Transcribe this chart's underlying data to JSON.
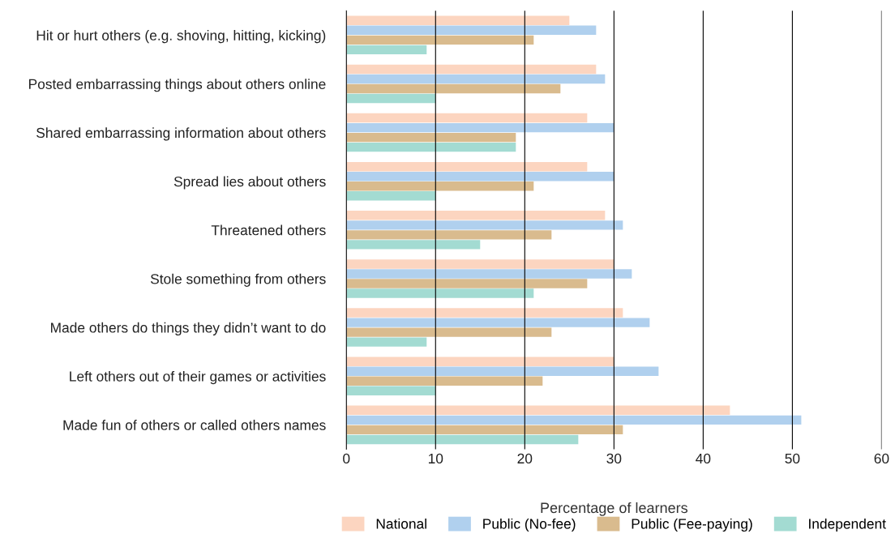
{
  "chart_data": {
    "type": "bar",
    "orientation": "horizontal",
    "xlabel": "Percentage of learners",
    "categories": [
      "Hit or hurt others (e.g. shoving, hitting, kicking)",
      "Posted embarrassing things about others online",
      "Shared embarrassing information about others",
      "Spread lies about others",
      "Threatened others",
      "Stole something from others",
      "Made others do things they didn’t want to do",
      "Left others out of their games or activities",
      "Made fun of others or called others names"
    ],
    "series": [
      {
        "name": "National",
        "color": "#fcd5c0",
        "values": [
          25,
          28,
          27,
          27,
          29,
          30,
          31,
          30,
          43
        ]
      },
      {
        "name": "Public (No-fee)",
        "color": "#b0d0ee",
        "values": [
          28,
          29,
          30,
          30,
          31,
          32,
          34,
          35,
          51
        ]
      },
      {
        "name": "Public (Fee-paying)",
        "color": "#d9bb8e",
        "values": [
          21,
          24,
          19,
          21,
          23,
          27,
          23,
          22,
          31
        ]
      },
      {
        "name": "Independent",
        "color": "#a3dbd2",
        "values": [
          9,
          10,
          19,
          10,
          15,
          21,
          9,
          10,
          26
        ]
      }
    ],
    "xlim": [
      0,
      60
    ],
    "xticks": [
      0,
      10,
      20,
      30,
      40,
      50,
      60
    ],
    "grid": "x",
    "legend": "bottom"
  }
}
